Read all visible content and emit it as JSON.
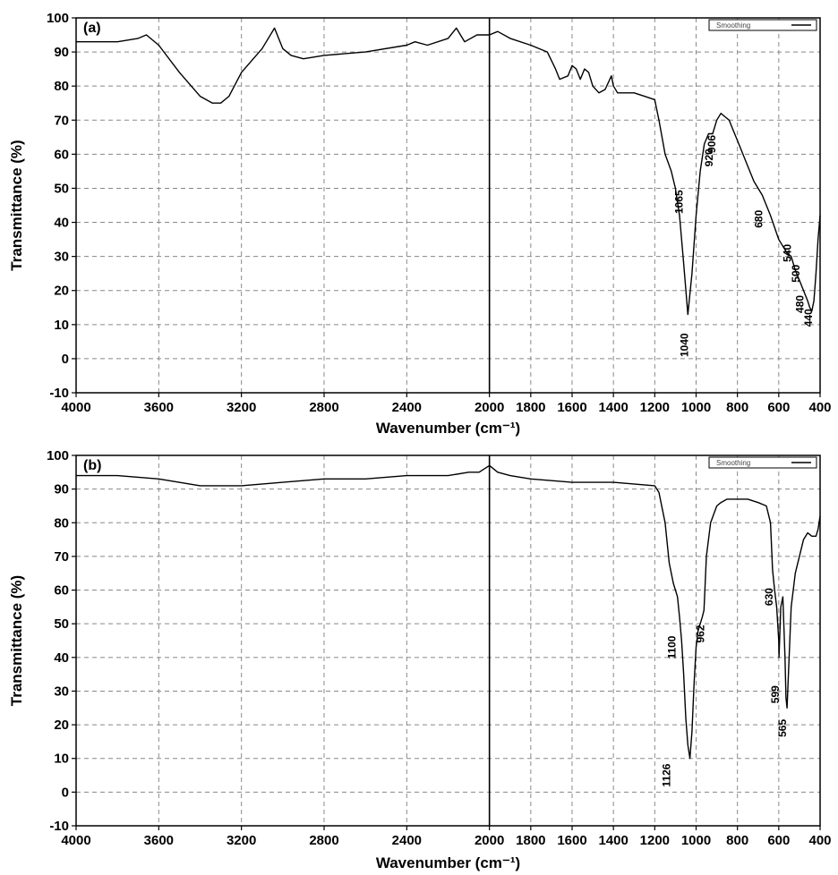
{
  "chart_data": [
    {
      "type": "line",
      "panel_label": "(a)",
      "xlabel": "Wavenumber (cm⁻¹)",
      "ylabel": "Transmittance (%)",
      "xlim": [
        4000,
        400
      ],
      "ylim": [
        -10,
        100
      ],
      "x_ticks": [
        4000,
        3600,
        3200,
        2800,
        2400,
        2000,
        1800,
        1600,
        1400,
        1200,
        1000,
        800,
        600,
        400
      ],
      "y_ticks": [
        -10,
        0,
        10,
        20,
        30,
        40,
        50,
        60,
        70,
        80,
        90,
        100
      ],
      "grid": true,
      "legend": {
        "position": "top-right",
        "entries": [
          "Smoothing"
        ]
      },
      "series": [
        {
          "x": [
            4000,
            3800,
            3700,
            3660,
            3600,
            3500,
            3400,
            3340,
            3300,
            3260,
            3200,
            3100,
            3040,
            3000,
            2960,
            2900,
            2800,
            2600,
            2400,
            2360,
            2300,
            2200,
            2160,
            2120,
            2060,
            2000,
            1960,
            1900,
            1800,
            1720,
            1680,
            1660,
            1620,
            1600,
            1580,
            1560,
            1540,
            1520,
            1500,
            1470,
            1440,
            1410,
            1400,
            1380,
            1350,
            1300,
            1250,
            1200,
            1180,
            1150,
            1120,
            1100,
            1080,
            1060,
            1040,
            1020,
            1000,
            980,
            960,
            940,
            920,
            900,
            880,
            860,
            840,
            820,
            800,
            760,
            720,
            680,
            640,
            600,
            580,
            560,
            540,
            520,
            500,
            480,
            460,
            450,
            440,
            430,
            420,
            410,
            400
          ],
          "y": [
            93,
            93,
            94,
            95,
            92,
            84,
            77,
            75,
            75,
            77,
            84,
            91,
            97,
            91,
            89,
            88,
            89,
            90,
            92,
            93,
            92,
            94,
            97,
            93,
            95,
            95,
            96,
            94,
            92,
            90,
            85,
            82,
            83,
            86,
            85,
            82,
            85,
            84,
            80,
            78,
            79,
            83,
            80,
            78,
            78,
            78,
            77,
            76,
            70,
            60,
            55,
            50,
            42,
            28,
            13,
            25,
            42,
            55,
            63,
            66,
            66,
            70,
            72,
            71,
            70,
            67,
            64,
            58,
            52,
            48,
            42,
            35,
            33,
            31,
            30,
            26,
            23,
            20,
            17,
            15,
            14,
            17,
            25,
            35,
            42
          ]
        }
      ],
      "annotations": [
        {
          "x": 1065,
          "y": 46,
          "text": "1065"
        },
        {
          "x": 1040,
          "y": 4,
          "text": "1040"
        },
        {
          "x": 906,
          "y": 63,
          "text": "906"
        },
        {
          "x": 920,
          "y": 59,
          "text": "920"
        },
        {
          "x": 680,
          "y": 41,
          "text": "680"
        },
        {
          "x": 540,
          "y": 31,
          "text": "540"
        },
        {
          "x": 500,
          "y": 25,
          "text": "500"
        },
        {
          "x": 480,
          "y": 16,
          "text": "480"
        },
        {
          "x": 440,
          "y": 12,
          "text": "440"
        }
      ]
    },
    {
      "type": "line",
      "panel_label": "(b)",
      "xlabel": "Wavenumber (cm⁻¹)",
      "ylabel": "Transmittance (%)",
      "xlim": [
        4000,
        400
      ],
      "ylim": [
        -10,
        100
      ],
      "x_ticks": [
        4000,
        3600,
        3200,
        2800,
        2400,
        2000,
        1800,
        1600,
        1400,
        1200,
        1000,
        800,
        600,
        400
      ],
      "y_ticks": [
        -10,
        0,
        10,
        20,
        30,
        40,
        50,
        60,
        70,
        80,
        90,
        100
      ],
      "grid": true,
      "legend": {
        "position": "top-right",
        "entries": [
          "Smoothing"
        ]
      },
      "series": [
        {
          "x": [
            4000,
            3800,
            3600,
            3400,
            3300,
            3200,
            3000,
            2800,
            2600,
            2400,
            2200,
            2100,
            2050,
            2000,
            1960,
            1900,
            1800,
            1600,
            1400,
            1200,
            1180,
            1150,
            1130,
            1110,
            1100,
            1090,
            1080,
            1070,
            1060,
            1050,
            1040,
            1030,
            1020,
            1010,
            1000,
            990,
            980,
            970,
            962,
            950,
            930,
            900,
            880,
            850,
            800,
            750,
            700,
            660,
            640,
            630,
            620,
            610,
            600,
            599,
            590,
            580,
            570,
            565,
            560,
            550,
            540,
            520,
            500,
            480,
            460,
            440,
            420,
            410,
            400
          ],
          "y": [
            94,
            94,
            93,
            91,
            91,
            91,
            92,
            93,
            93,
            94,
            94,
            95,
            95,
            97,
            95,
            94,
            93,
            92,
            92,
            91,
            89,
            80,
            68,
            62,
            60,
            58,
            52,
            45,
            35,
            22,
            14,
            10,
            18,
            32,
            43,
            48,
            50,
            52,
            54,
            70,
            80,
            85,
            86,
            87,
            87,
            87,
            86,
            85,
            80,
            66,
            60,
            55,
            45,
            40,
            55,
            58,
            40,
            28,
            25,
            40,
            55,
            65,
            70,
            75,
            77,
            76,
            76,
            78,
            82
          ]
        }
      ],
      "annotations": [
        {
          "x": 1100,
          "y": 43,
          "text": "1100"
        },
        {
          "x": 1126,
          "y": 5,
          "text": "1126"
        },
        {
          "x": 962,
          "y": 47,
          "text": "962"
        },
        {
          "x": 630,
          "y": 58,
          "text": "630"
        },
        {
          "x": 599,
          "y": 29,
          "text": "599"
        },
        {
          "x": 565,
          "y": 19,
          "text": "565"
        }
      ]
    }
  ]
}
